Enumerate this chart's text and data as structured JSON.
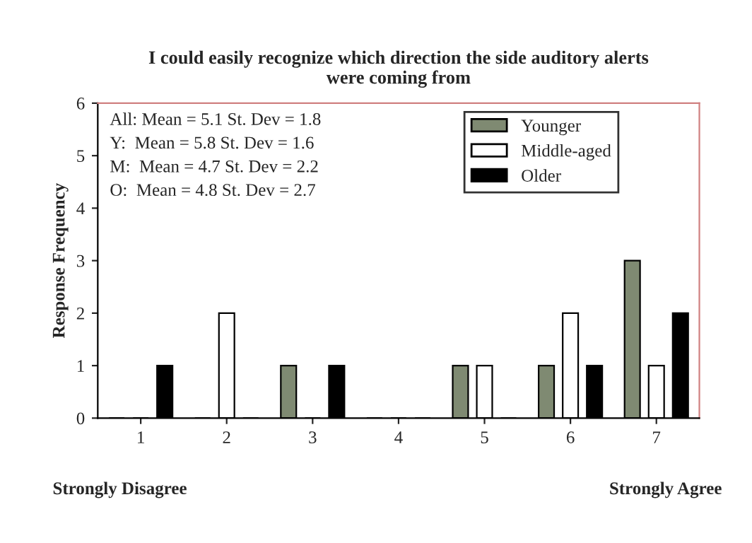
{
  "chart_data": {
    "type": "bar",
    "title": "I could easily recognize which direction the side auditory alerts\nwere coming from",
    "ylabel": "Response Frequency",
    "categories": [
      "1",
      "2",
      "3",
      "4",
      "5",
      "6",
      "7"
    ],
    "series": [
      {
        "name": "Younger",
        "color": "#7f8a72",
        "values": [
          0,
          0,
          1,
          0,
          1,
          1,
          3
        ]
      },
      {
        "name": "Middle-aged",
        "color": "#ffffff",
        "values": [
          0,
          2,
          0,
          0,
          1,
          2,
          1
        ]
      },
      {
        "name": "Older",
        "color": "#000000",
        "values": [
          1,
          0,
          1,
          0,
          0,
          1,
          2
        ]
      }
    ],
    "ylim": [
      0,
      6
    ],
    "yticks": [
      0,
      1,
      2,
      3,
      4,
      5,
      6
    ],
    "grid": false,
    "legend": "top right",
    "annotations": [
      "All: Mean = 5.1 St. Dev = 1.8",
      "Y:  Mean = 5.8 St. Dev = 1.6",
      "M:  Mean = 4.7 St. Dev = 2.2",
      "O:  Mean = 4.8 St. Dev = 2.7",
      "Strongly Disagree",
      "Strongly Agree"
    ]
  }
}
